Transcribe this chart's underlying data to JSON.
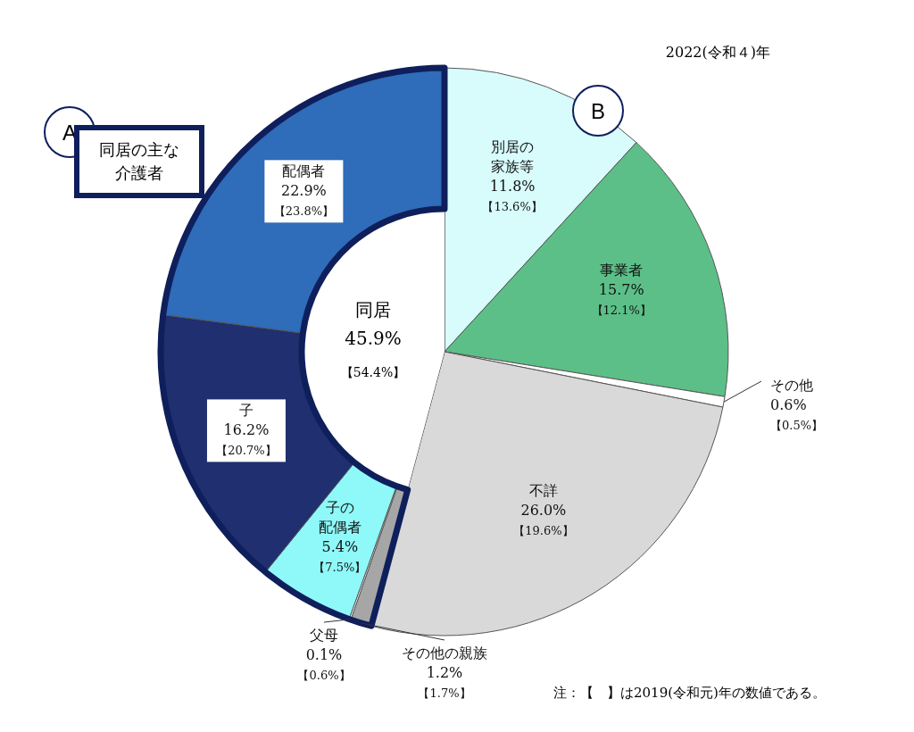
{
  "chart_data": {
    "type": "pie",
    "title": "2022(令和４)年",
    "categories": [
      "別居の家族等",
      "事業者",
      "その他",
      "不詳",
      "その他の親族",
      "父母",
      "子の配偶者",
      "子",
      "配偶者"
    ],
    "value_labels": [
      "11.8%",
      "15.7%",
      "0.6%",
      "26.0%",
      "1.2%",
      "0.1%",
      "5.4%",
      "16.2%",
      "22.9%"
    ],
    "values": [
      11.8,
      15.7,
      0.6,
      26.0,
      1.2,
      0.1,
      5.4,
      16.2,
      22.9
    ],
    "colors": [
      "#d8fbfc",
      "#5cbf88",
      "#ffffff",
      "#d9d9d9",
      "#a6a6a6",
      "#ffffff",
      "#8ff8f8",
      "#1f2f6f",
      "#2f6cb9"
    ],
    "annotations": [
      "【13.6%】",
      "【12.1%】",
      "【0.5%】",
      "【19.6%】",
      "【1.7%】",
      "【0.6%】",
      "【7.5%】",
      "【20.7%】",
      "【23.8%】",
      "同居",
      "45.9%",
      "【54.4%】",
      "A",
      "同居の主な介護者",
      "B",
      "注：【　】は2019(令和元)年の数値である。"
    ]
  }
}
